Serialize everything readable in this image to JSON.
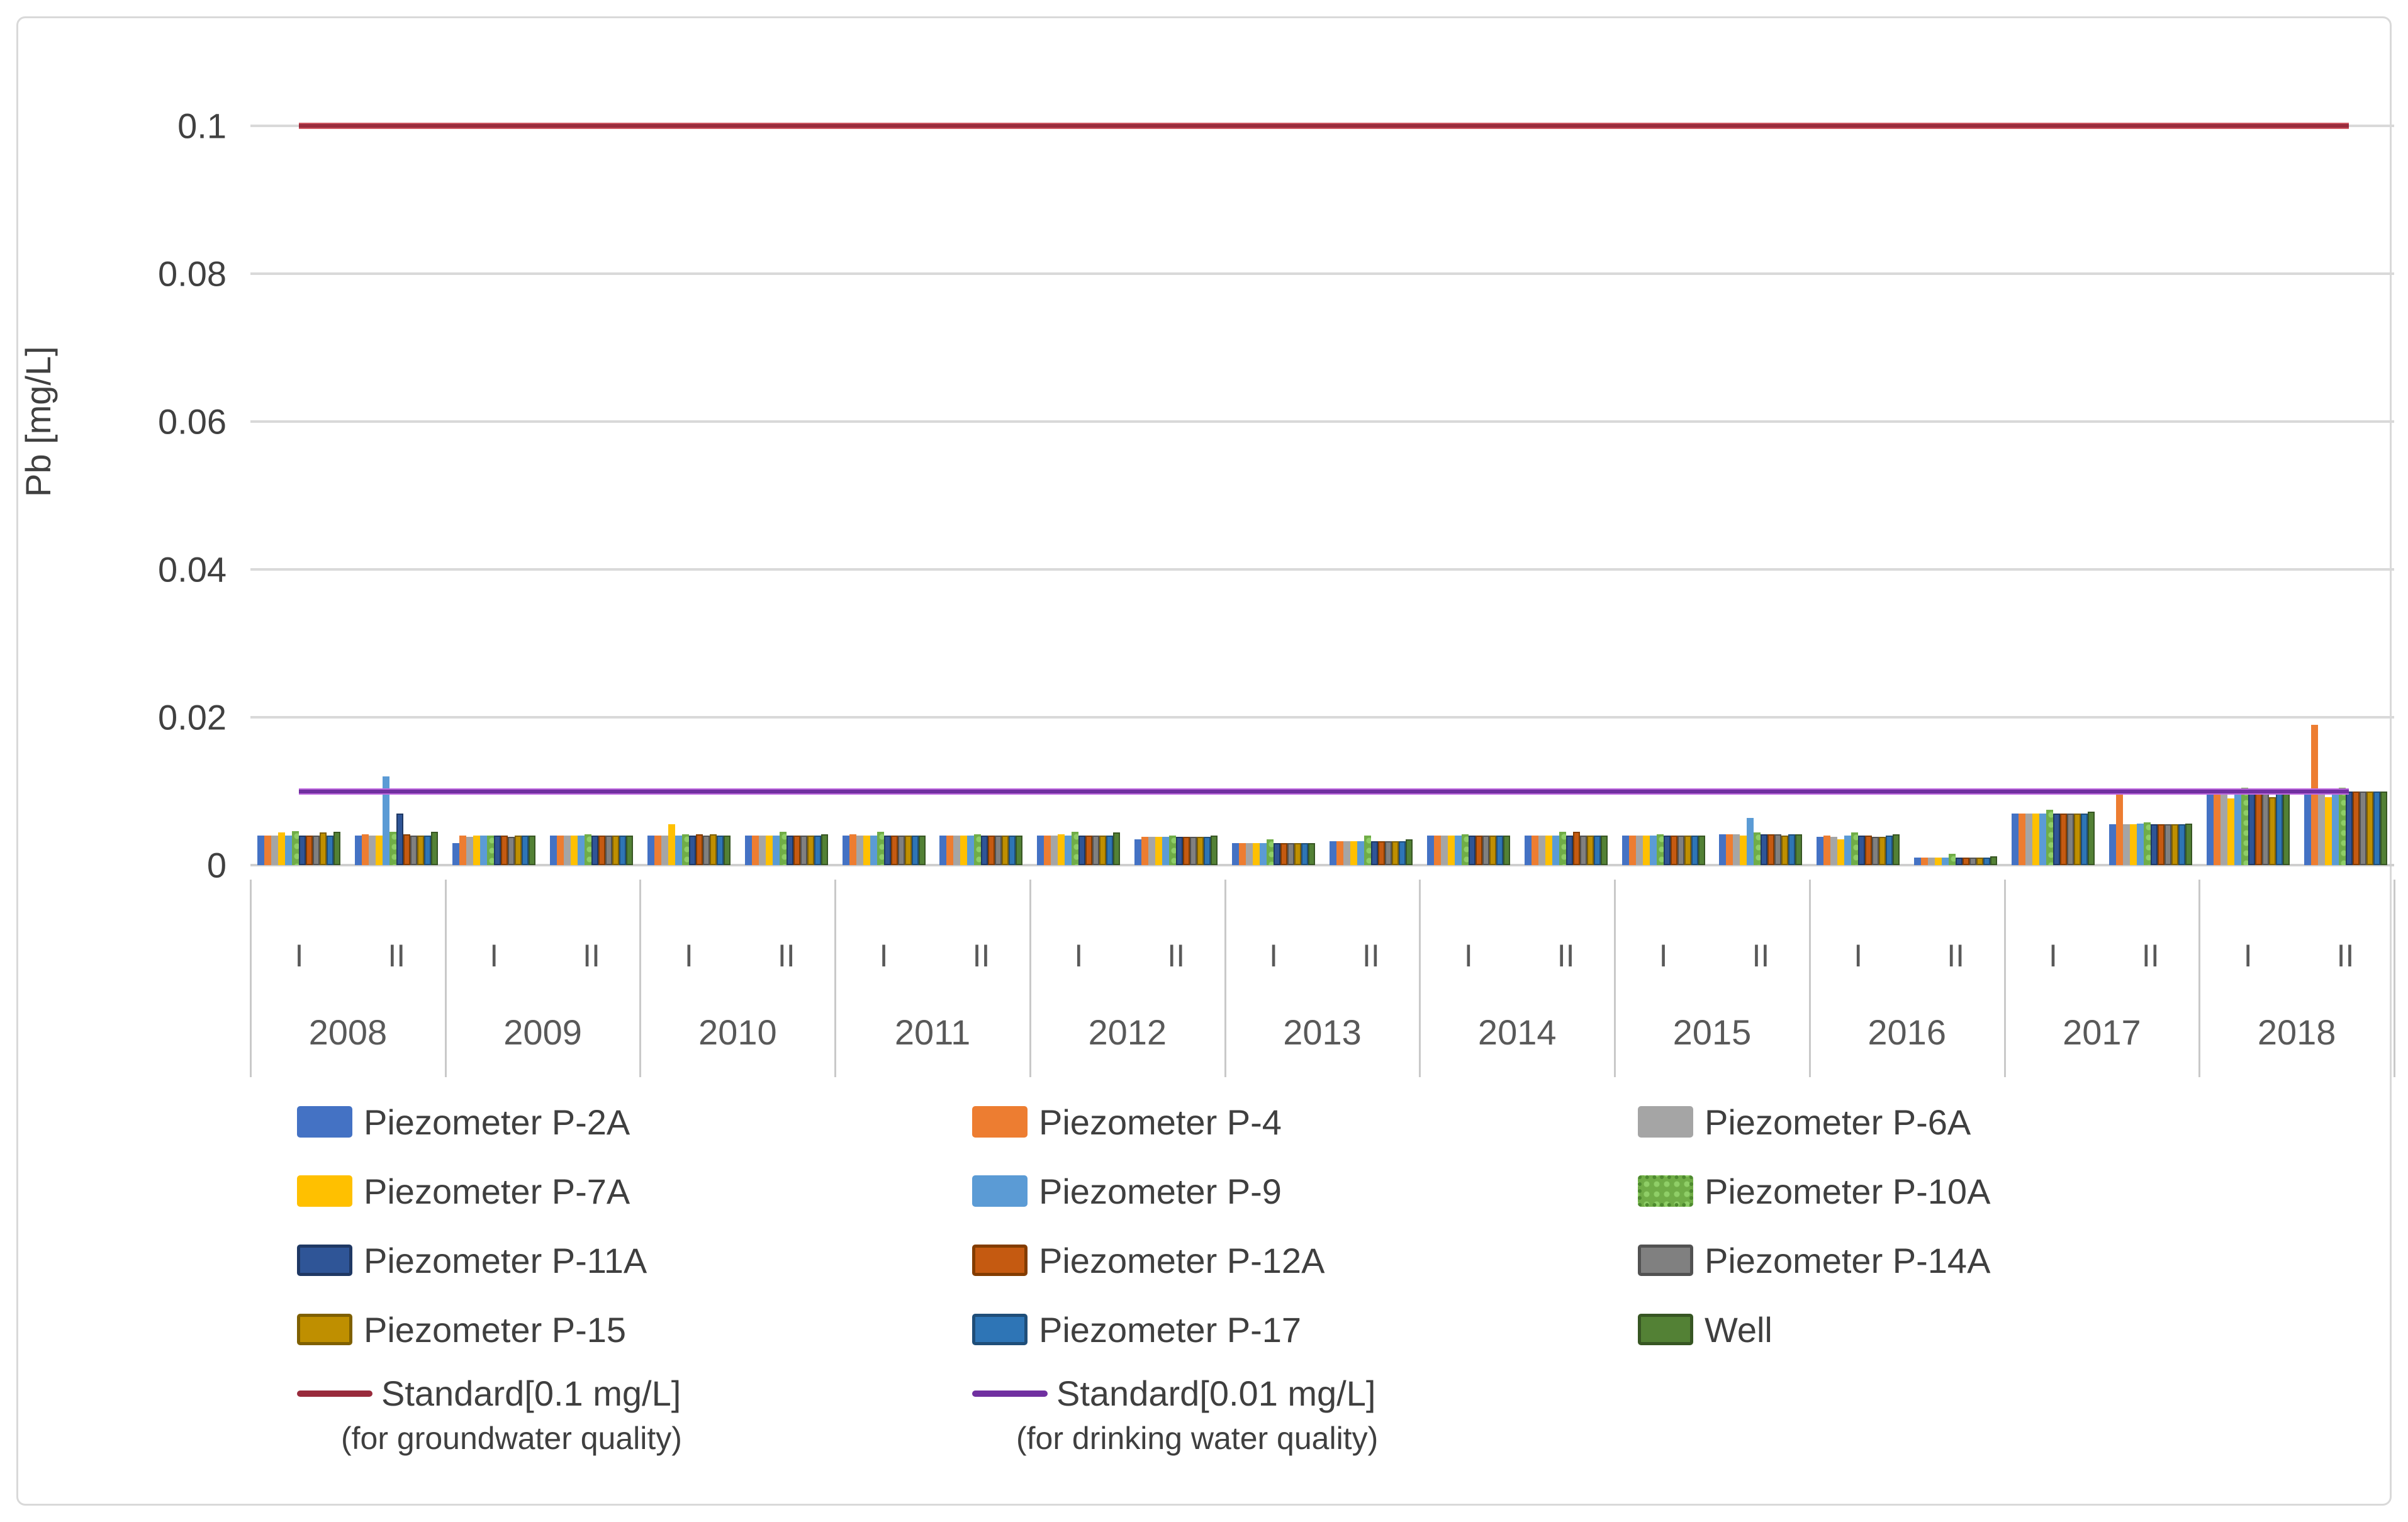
{
  "y_axis": {
    "title": "Pb [mg/L]",
    "ticks": [
      {
        "label": "0.1",
        "value": 0.1
      },
      {
        "label": "0.08",
        "value": 0.08
      },
      {
        "label": "0.06",
        "value": 0.06
      },
      {
        "label": "0.04",
        "value": 0.04
      },
      {
        "label": "0.02",
        "value": 0.02
      },
      {
        "label": "0",
        "value": 0
      }
    ]
  },
  "x_axis": {
    "period_labels": [
      "I",
      "II"
    ],
    "years": [
      "2008",
      "2009",
      "2010",
      "2011",
      "2012",
      "2013",
      "2014",
      "2015",
      "2016",
      "2017",
      "2018"
    ]
  },
  "standards": [
    {
      "label": "Standard[0.1 mg/L]",
      "sublabel": "(for groundwater quality)",
      "value": 0.1,
      "color": "#992b3c"
    },
    {
      "label": "Standard[0.01 mg/L]",
      "sublabel": "(for drinking water quality)",
      "value": 0.01,
      "color": "#7030a0"
    }
  ],
  "chart_data": {
    "type": "bar",
    "title": "",
    "xlabel": "",
    "ylabel": "Pb [mg/L]",
    "ylim": [
      0,
      0.105
    ],
    "yticks": [
      0,
      0.02,
      0.04,
      0.06,
      0.08,
      0.1
    ],
    "grid": "horizontal",
    "legend_position": "bottom",
    "categories": [
      "2008-I",
      "2008-II",
      "2009-I",
      "2009-II",
      "2010-I",
      "2010-II",
      "2011-I",
      "2011-II",
      "2012-I",
      "2012-II",
      "2013-I",
      "2013-II",
      "2014-I",
      "2014-II",
      "2015-I",
      "2015-II",
      "2016-I",
      "2016-II",
      "2017-I",
      "2017-II",
      "2018-I",
      "2018-II"
    ],
    "reference_lines": [
      {
        "name": "Standard[0.1 mg/L] (for groundwater quality)",
        "value": 0.1,
        "color": "#992b3c"
      },
      {
        "name": "Standard[0.01 mg/L] (for drinking water quality)",
        "value": 0.01,
        "color": "#7030a0"
      }
    ],
    "series": [
      {
        "name": "Piezometer P-2A",
        "color": "#4472C4",
        "border": "",
        "pattern": "",
        "values": [
          0.004,
          0.004,
          0.003,
          0.004,
          0.004,
          0.004,
          0.004,
          0.004,
          0.004,
          0.0035,
          0.003,
          0.0032,
          0.004,
          0.004,
          0.004,
          0.0042,
          0.0038,
          0.001,
          0.007,
          0.0055,
          0.01,
          0.01
        ]
      },
      {
        "name": "Piezometer P-4",
        "color": "#ED7D31",
        "border": "",
        "pattern": "",
        "values": [
          0.004,
          0.0042,
          0.004,
          0.004,
          0.004,
          0.004,
          0.0042,
          0.004,
          0.004,
          0.0038,
          0.003,
          0.0032,
          0.004,
          0.004,
          0.004,
          0.0042,
          0.004,
          0.001,
          0.007,
          0.0102,
          0.01,
          0.019
        ]
      },
      {
        "name": "Piezometer P-6A",
        "color": "#A5A5A5",
        "border": "",
        "pattern": "",
        "values": [
          0.004,
          0.004,
          0.0038,
          0.004,
          0.004,
          0.004,
          0.004,
          0.004,
          0.004,
          0.0038,
          0.003,
          0.0032,
          0.004,
          0.004,
          0.004,
          0.0042,
          0.0038,
          0.001,
          0.007,
          0.0055,
          0.01,
          0.01
        ]
      },
      {
        "name": "Piezometer P-7A",
        "color": "#FFC000",
        "border": "",
        "pattern": "",
        "values": [
          0.0044,
          0.004,
          0.004,
          0.004,
          0.0055,
          0.004,
          0.004,
          0.004,
          0.0042,
          0.0038,
          0.003,
          0.0032,
          0.004,
          0.004,
          0.004,
          0.004,
          0.0035,
          0.001,
          0.007,
          0.0055,
          0.009,
          0.0092
        ]
      },
      {
        "name": "Piezometer P-9",
        "color": "#5B9BD5",
        "border": "",
        "pattern": "",
        "values": [
          0.004,
          0.012,
          0.004,
          0.004,
          0.004,
          0.004,
          0.004,
          0.004,
          0.004,
          0.0038,
          0.003,
          0.0032,
          0.004,
          0.004,
          0.004,
          0.0064,
          0.004,
          0.001,
          0.007,
          0.0056,
          0.01,
          0.01
        ]
      },
      {
        "name": "Piezometer P-10A",
        "color": "#70AD47",
        "border": "",
        "pattern": "dots",
        "values": [
          0.0046,
          0.0045,
          0.004,
          0.0042,
          0.0042,
          0.0045,
          0.0045,
          0.0042,
          0.0045,
          0.004,
          0.0035,
          0.004,
          0.0042,
          0.0045,
          0.0042,
          0.0044,
          0.0044,
          0.0015,
          0.0075,
          0.0058,
          0.0105,
          0.0105
        ]
      },
      {
        "name": "Piezometer P-11A",
        "color": "#2F5597",
        "border": "#1F3864",
        "pattern": "",
        "values": [
          0.004,
          0.007,
          0.004,
          0.004,
          0.004,
          0.004,
          0.004,
          0.004,
          0.004,
          0.0038,
          0.003,
          0.0032,
          0.004,
          0.004,
          0.004,
          0.0042,
          0.004,
          0.001,
          0.007,
          0.0055,
          0.01,
          0.01
        ]
      },
      {
        "name": "Piezometer P-12A",
        "color": "#C55A11",
        "border": "#833C00",
        "pattern": "",
        "values": [
          0.004,
          0.0042,
          0.004,
          0.004,
          0.0042,
          0.004,
          0.004,
          0.004,
          0.004,
          0.0038,
          0.003,
          0.0032,
          0.004,
          0.0045,
          0.004,
          0.0042,
          0.004,
          0.001,
          0.007,
          0.0055,
          0.01,
          0.01
        ]
      },
      {
        "name": "Piezometer P-14A",
        "color": "#808080",
        "border": "#525252",
        "pattern": "",
        "values": [
          0.004,
          0.004,
          0.0038,
          0.004,
          0.004,
          0.004,
          0.004,
          0.004,
          0.004,
          0.0038,
          0.003,
          0.0032,
          0.004,
          0.004,
          0.004,
          0.0042,
          0.0038,
          0.001,
          0.007,
          0.0055,
          0.01,
          0.01
        ]
      },
      {
        "name": "Piezometer P-15",
        "color": "#BF8F00",
        "border": "#7F6000",
        "pattern": "",
        "values": [
          0.0044,
          0.004,
          0.004,
          0.004,
          0.0042,
          0.004,
          0.004,
          0.004,
          0.004,
          0.0038,
          0.003,
          0.0032,
          0.004,
          0.004,
          0.004,
          0.004,
          0.0038,
          0.001,
          0.007,
          0.0055,
          0.0092,
          0.01
        ]
      },
      {
        "name": "Piezometer P-17",
        "color": "#2E75B6",
        "border": "#1F4E79",
        "pattern": "",
        "values": [
          0.004,
          0.004,
          0.004,
          0.004,
          0.004,
          0.004,
          0.004,
          0.004,
          0.004,
          0.0038,
          0.003,
          0.0032,
          0.004,
          0.004,
          0.004,
          0.0042,
          0.004,
          0.001,
          0.007,
          0.0055,
          0.01,
          0.01
        ]
      },
      {
        "name": "Well",
        "color": "#538135",
        "border": "#375623",
        "pattern": "",
        "values": [
          0.0045,
          0.0045,
          0.004,
          0.004,
          0.004,
          0.0042,
          0.004,
          0.004,
          0.0044,
          0.004,
          0.003,
          0.0035,
          0.004,
          0.004,
          0.004,
          0.0042,
          0.0042,
          0.0012,
          0.0072,
          0.0056,
          0.01,
          0.01
        ]
      }
    ]
  }
}
